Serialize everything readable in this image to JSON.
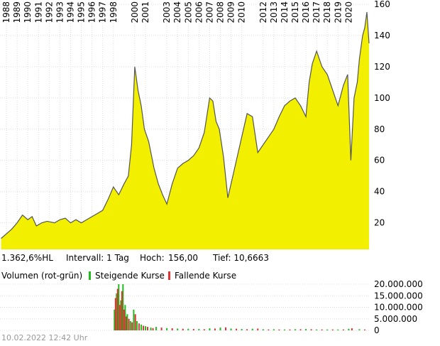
{
  "info": {
    "range": "1.362,6%HL",
    "interval": "Intervall: 1 Tag",
    "high_label": "Hoch:",
    "high": "156,00",
    "low": "Tief: 10,6663"
  },
  "timestamp": "10.02.2022 12:42 Uhr",
  "chart_data": [
    {
      "type": "area",
      "color": "#f2f000",
      "line_color": "#555555",
      "grid": true,
      "x": [
        1987.5,
        1988,
        1988.5,
        1989,
        1989.5,
        1990,
        1990.4,
        1990.8,
        1991.3,
        1991.8,
        1992.5,
        1993,
        1993.5,
        1994,
        1994.5,
        1995,
        1995.5,
        1996,
        1996.5,
        1997,
        1997.5,
        1998,
        1998.5,
        1999,
        1999.4,
        1999.7,
        2000,
        2000.3,
        2000.6,
        2000.9,
        2001.3,
        2001.8,
        2002.2,
        2002.6,
        2003,
        2003.5,
        2004,
        2004.5,
        2005,
        2005.5,
        2006,
        2006.5,
        2007,
        2007.3,
        2007.6,
        2007.9,
        2008.3,
        2008.7,
        2009,
        2009.5,
        2010,
        2010.5,
        2011,
        2011.5,
        2012,
        2012.5,
        2013,
        2013.5,
        2014,
        2014.5,
        2015,
        2015.5,
        2016,
        2016.3,
        2016.6,
        2017,
        2017.5,
        2018,
        2018.5,
        2019,
        2019.5,
        2019.9,
        2020.2,
        2020.5,
        2020.8,
        2021,
        2021.3,
        2021.5,
        2021.7,
        2021.9
      ],
      "values": [
        10,
        13,
        16,
        20,
        25,
        22,
        24,
        18,
        20,
        21,
        20,
        22,
        23,
        20,
        22,
        20,
        22,
        24,
        26,
        28,
        35,
        43,
        38,
        45,
        50,
        70,
        120,
        105,
        95,
        80,
        72,
        55,
        45,
        38,
        32,
        45,
        55,
        58,
        60,
        63,
        68,
        78,
        100,
        98,
        85,
        80,
        62,
        36,
        45,
        60,
        75,
        90,
        88,
        65,
        70,
        75,
        80,
        88,
        95,
        98,
        100,
        95,
        88,
        110,
        122,
        130,
        120,
        115,
        105,
        95,
        108,
        115,
        60,
        100,
        110,
        125,
        140,
        145,
        155,
        135
      ],
      "xlim": [
        1987.4,
        2021.9
      ],
      "ylim": [
        3,
        160
      ],
      "xticks": [
        1988,
        1989,
        1990,
        1991,
        1992,
        1993,
        1994,
        1995,
        1996,
        1997,
        1998,
        2000,
        2001,
        2003,
        2004,
        2005,
        2006,
        2007,
        2008,
        2009,
        2010,
        2012,
        2013,
        2014,
        2015,
        2016,
        2017,
        2018,
        2019,
        2020
      ],
      "yticks": [
        20,
        40,
        60,
        80,
        100,
        120,
        140,
        160
      ]
    },
    {
      "type": "bar",
      "title": "Volumen (rot-grün)",
      "xlim": [
        1987.4,
        2021.9
      ],
      "ylim": [
        0,
        20000000
      ],
      "yticks": [
        0,
        {
          "value": 5000000,
          "label": "5.000.000"
        },
        {
          "value": 10000000,
          "label": "10.000.000"
        },
        {
          "value": 15000000,
          "label": "15.000.000"
        },
        {
          "value": 20000000,
          "label": "20.000.000"
        }
      ],
      "series": [
        {
          "name": "Steigende Kurse",
          "color": "#22bb22",
          "x": [
            1998.1,
            1998.3,
            1998.5,
            1998.7,
            1998.9,
            1999.1,
            1999.3,
            1999.6,
            1999.9,
            2000.2,
            2000.6,
            2001,
            2001.5,
            2002,
            2003,
            2004,
            2005,
            2006,
            2007,
            2008,
            2009,
            2010,
            2011,
            2012,
            2013,
            2014,
            2015,
            2016,
            2017,
            2018,
            2019,
            2020,
            2021
          ],
          "values": [
            9000000,
            16000000,
            20000000,
            13000000,
            20000000,
            11000000,
            7000000,
            4000000,
            9000000,
            4000000,
            2500000,
            1800000,
            1200000,
            1500000,
            1000000,
            800000,
            700000,
            600000,
            900000,
            1200000,
            800000,
            600000,
            700000,
            500000,
            500000,
            400000,
            500000,
            600000,
            400000,
            400000,
            400000,
            700000,
            500000
          ]
        },
        {
          "name": "Fallende Kurse",
          "color": "#dd3333",
          "x": [
            1998.2,
            1998.4,
            1998.6,
            1998.8,
            1999,
            1999.2,
            1999.45,
            1999.75,
            2000.05,
            2000.4,
            2000.8,
            2001.2,
            2001.7,
            2002.5,
            2003.5,
            2004.5,
            2005.5,
            2006.5,
            2007.5,
            2008.5,
            2009.5,
            2010.5,
            2011.5,
            2012.5,
            2013.5,
            2014.5,
            2015.5,
            2016.5,
            2017.5,
            2018.5,
            2019.5,
            2020.3,
            2021.5
          ],
          "values": [
            14000000,
            18000000,
            11000000,
            17000000,
            9000000,
            6000000,
            5000000,
            3500000,
            7000000,
            3000000,
            2000000,
            1500000,
            1000000,
            1200000,
            900000,
            700000,
            600000,
            500000,
            800000,
            1300000,
            700000,
            500000,
            800000,
            400000,
            400000,
            400000,
            500000,
            500000,
            400000,
            400000,
            400000,
            900000,
            400000
          ]
        }
      ]
    }
  ]
}
